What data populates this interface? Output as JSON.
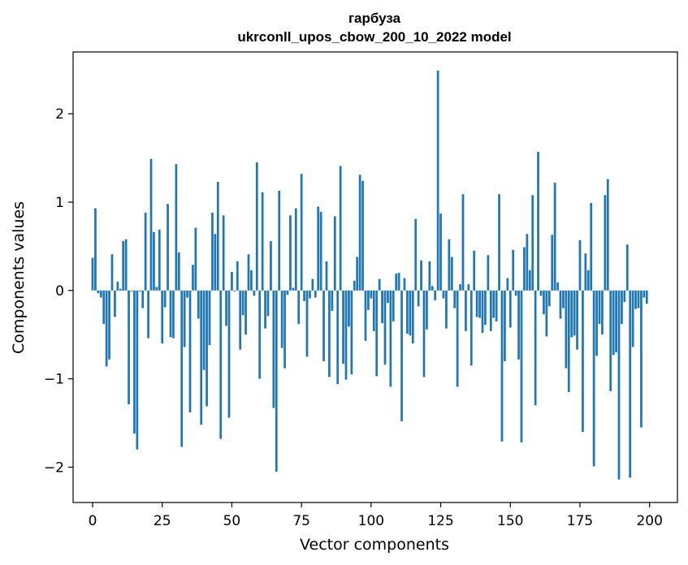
{
  "chart_data": {
    "type": "bar",
    "title_line1": "гарбуза",
    "title_line2": "ukrconll_upos_cbow_200_10_2022 model",
    "xlabel": "Vector components",
    "ylabel": "Components values",
    "xlim": [
      -7,
      210
    ],
    "ylim": [
      -2.4,
      2.7
    ],
    "xticks": [
      0,
      25,
      50,
      75,
      100,
      125,
      150,
      175,
      200
    ],
    "xtick_labels": [
      "0",
      "25",
      "50",
      "75",
      "100",
      "125",
      "150",
      "175",
      "200"
    ],
    "yticks": [
      -2,
      -1,
      0,
      1,
      2
    ],
    "ytick_labels": [
      "−2",
      "−1",
      "0",
      "1",
      "2"
    ],
    "bar_color": "#1f77b4",
    "values": [
      0.37,
      0.93,
      -0.03,
      -0.08,
      -0.38,
      -0.86,
      -0.78,
      0.41,
      -0.3,
      0.1,
      0.02,
      0.56,
      0.58,
      -1.29,
      -0.01,
      -1.62,
      -1.8,
      -0.01,
      -0.2,
      0.88,
      -0.54,
      1.49,
      0.66,
      0.04,
      0.69,
      -0.6,
      -0.19,
      0.98,
      -0.53,
      -0.54,
      1.43,
      0.43,
      -1.77,
      -0.64,
      -0.08,
      -1.38,
      0.29,
      0.71,
      -0.32,
      -1.52,
      -0.9,
      -1.31,
      -0.62,
      0.88,
      0.64,
      1.23,
      -1.68,
      0.85,
      -0.4,
      -1.44,
      0.21,
      -0.01,
      0.33,
      -0.67,
      -0.28,
      -0.5,
      0.41,
      0.23,
      -0.06,
      1.45,
      -1.0,
      1.11,
      -0.43,
      -0.29,
      0.56,
      -1.33,
      -2.05,
      1.13,
      -0.65,
      -0.88,
      -0.05,
      0.85,
      0.03,
      0.93,
      -0.38,
      1.32,
      -0.12,
      -0.75,
      -0.09,
      0.13,
      -0.08,
      0.95,
      0.89,
      -0.8,
      0.33,
      -0.98,
      -0.23,
      0.84,
      -1.06,
      1.41,
      -0.83,
      -1.01,
      -0.41,
      -0.95,
      0.11,
      0.38,
      1.31,
      1.24,
      -0.57,
      -0.22,
      -0.09,
      -0.46,
      -0.97,
      0.13,
      -0.37,
      -0.84,
      -0.14,
      -1.09,
      -0.35,
      0.19,
      0.2,
      -1.48,
      0.14,
      -0.49,
      -0.51,
      -0.6,
      0.81,
      -0.18,
      0.34,
      -0.98,
      -0.44,
      0.33,
      0.05,
      -0.11,
      2.49,
      0.87,
      -0.09,
      -0.43,
      0.58,
      0.38,
      -0.2,
      -1.09,
      0.07,
      1.09,
      -0.46,
      0.07,
      -0.85,
      0.45,
      -0.3,
      -0.31,
      -0.48,
      -0.39,
      0.4,
      -0.46,
      -0.31,
      -0.35,
      1.09,
      -1.71,
      -0.8,
      0.14,
      -0.42,
      0.46,
      -0.06,
      -0.78,
      -1.72,
      0.49,
      0.64,
      0.23,
      1.08,
      -1.3,
      1.57,
      -0.06,
      -0.27,
      -0.52,
      -0.18,
      0.63,
      1.22,
      0.09,
      -0.32,
      -0.2,
      -0.88,
      -1.15,
      -0.53,
      -0.51,
      -0.67,
      0.57,
      -1.6,
      0.42,
      0.23,
      0.99,
      -1.99,
      -0.74,
      -0.38,
      -0.5,
      1.08,
      1.26,
      -1.14,
      -0.73,
      -0.7,
      -2.14,
      -0.38,
      -0.13,
      0.52,
      -2.12,
      -0.64,
      -0.21,
      -0.2,
      -1.55,
      -0.08,
      -0.15
    ]
  }
}
